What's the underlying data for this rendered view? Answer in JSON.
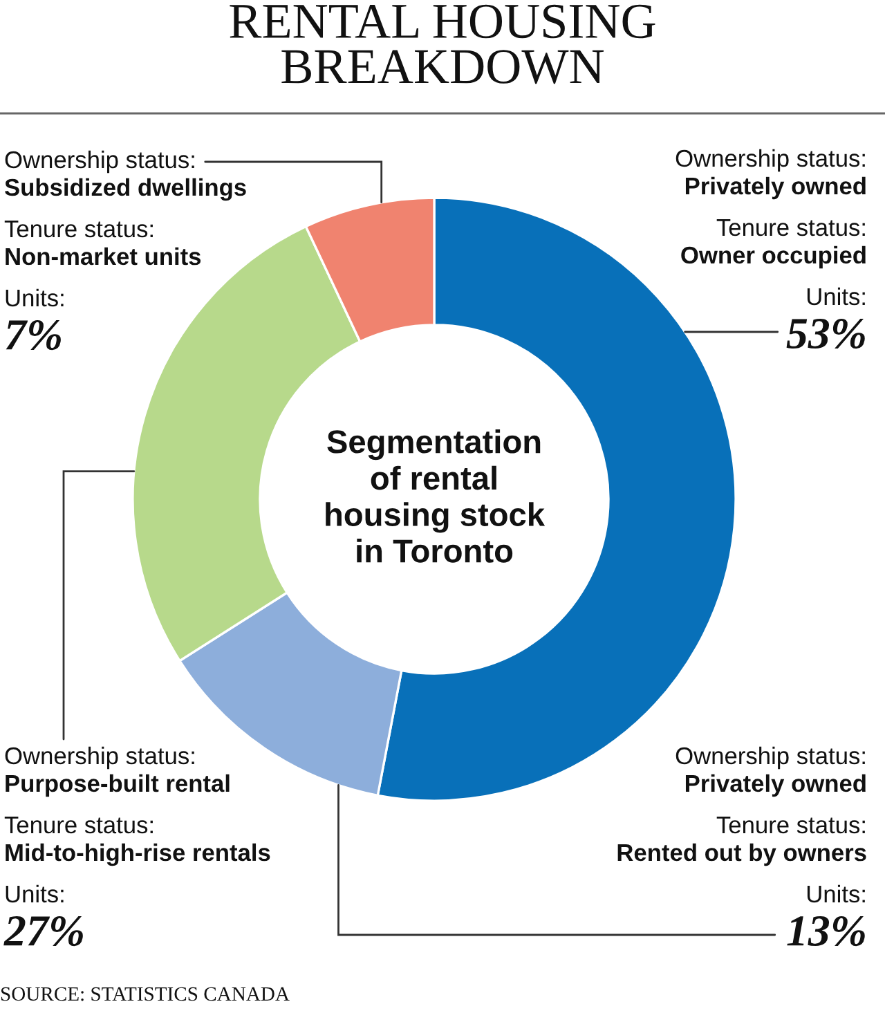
{
  "chart_data": {
    "type": "donut",
    "title": "RENTAL HOUSING\nBREAKDOWN",
    "subtitle": "Segmentation\nof rental\nhousing stock\nin Toronto",
    "categories": [
      "Ownership status:\nPrivately owned\nTenure status:\nOwner occupied",
      "Ownership status:\nPrivately owned\nTenure status:\nRented out by owners",
      "Ownership status:\nPurpose-built rental\nTenure status:\nMid-to-high-rise rentals",
      "Ownership status:\nSubsidized dwellings\nTenure status:\nNon-market units"
    ],
    "values": [
      53,
      13,
      27,
      7
    ],
    "colors": [
      "#0870b9",
      "#8daedb",
      "#b7d98b",
      "#f0836f"
    ],
    "value_labels": [
      "Units:\n53%",
      "Units:\n13%",
      "Units:\n27%",
      "Units:\n7%"
    ],
    "annotations": [
      "SOURCE: STATISTICS CANADA"
    ]
  }
}
